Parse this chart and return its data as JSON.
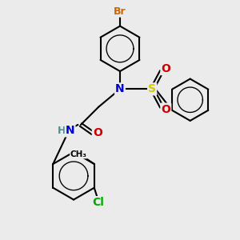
{
  "bg_color": "#ebebeb",
  "bond_color": "#000000",
  "bond_width": 1.5,
  "atom_colors": {
    "Br": "#cc6600",
    "N": "#0000cc",
    "S": "#cccc00",
    "O": "#cc0000",
    "Cl": "#00aa00",
    "C": "#000000",
    "H": "#4a9090"
  },
  "font_size": 9,
  "fig_size": [
    3.0,
    3.0
  ],
  "dpi": 100
}
